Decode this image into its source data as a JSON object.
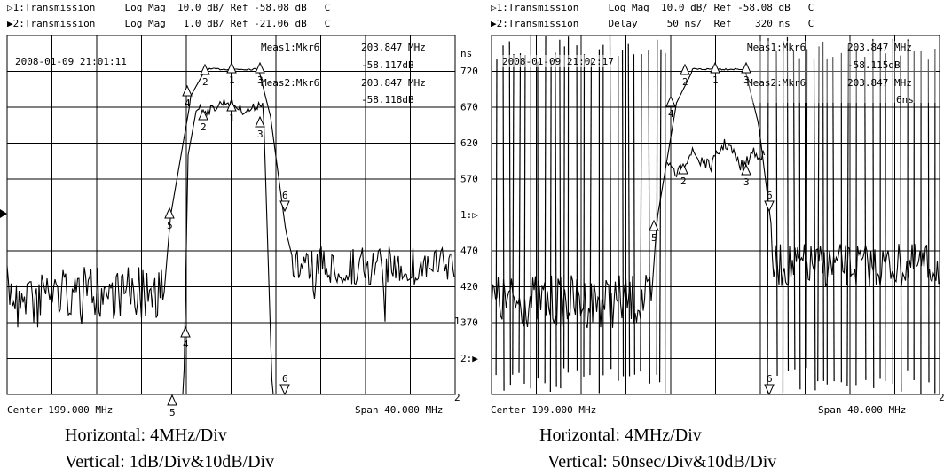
{
  "panels": [
    {
      "header_line1": "▷1:Transmission     Log Mag  10.0 dB/ Ref -58.08 dB   C",
      "header_line2": "▶2:Transmission     Log Mag   1.0 dB/ Ref -21.06 dB   C",
      "timestamp": "2008-01-09 21:01:11",
      "meas1_label": "Meas1:Mkr6",
      "meas1_freq": "203.847 MHz",
      "meas1_val": "-58.117dB",
      "meas2_label": "Meas2:Mkr6",
      "meas2_freq": "203.847 MHz",
      "meas2_val": "-58.118dB",
      "footer_center": "Center 199.000 MHz",
      "footer_span": "Span 40.000 MHz",
      "caption1": "Horizontal: 4MHz/Div",
      "caption2": "Vertical: 1dB/Div&10dB/Div"
    },
    {
      "header_line1": "▷1:Transmission     Log Mag  10.0 dB/ Ref -58.08 dB   C",
      "header_line2": "▶2:Transmission     Delay     50 ns/  Ref    320 ns   C",
      "timestamp": "2008-01-09 21:02:17",
      "meas1_label": "Meas1:Mkr6",
      "meas1_freq": "203.847 MHz",
      "meas1_val": "-58.115dB",
      "meas2_label": "Meas2:Mkr6",
      "meas2_freq": "203.847 MHz",
      "meas2_val": "",
      "meas2_val_partial": "6ns",
      "footer_center": "Center 199.000 MHz",
      "footer_span": "Span 40.000 MHz",
      "caption1": "Horizontal: 4MHz/Div",
      "caption2": "Vertical: 50nsec/Div&10dB/Div",
      "y_unit": "ns",
      "y_ticks": [
        "720",
        "670",
        "620",
        "570",
        "1:▷",
        "470",
        "420",
        "370",
        "2:▶"
      ]
    }
  ],
  "chart_data": [
    {
      "type": "line",
      "x_axis": {
        "center_mhz": 199.0,
        "span_mhz": 40.0,
        "per_div_mhz": 4.0,
        "divisions": 10
      },
      "y_axis": {
        "divisions": 10
      },
      "series": [
        {
          "name": "1:Transmission",
          "format": "Log Mag",
          "scale_per_div": "10.0 dB",
          "ref": "-58.08 dB"
        },
        {
          "name": "2:Transmission",
          "format": "Log Mag",
          "scale_per_div": "1.0 dB",
          "ref": "-21.06 dB"
        }
      ],
      "markers": [
        {
          "trace": 1,
          "labels": [
            "1",
            "2",
            "3",
            "4",
            "5",
            "6"
          ]
        },
        {
          "trace": 2,
          "labels": [
            "1",
            "2",
            "3",
            "4",
            "5",
            "6"
          ]
        }
      ],
      "readouts": [
        {
          "label": "Meas1:Mkr6",
          "freq_mhz": 203.847,
          "value_db": -58.117
        },
        {
          "label": "Meas2:Mkr6",
          "freq_mhz": 203.847,
          "value_db": -58.118
        }
      ],
      "grid": true
    },
    {
      "type": "line",
      "x_axis": {
        "center_mhz": 199.0,
        "span_mhz": 40.0,
        "per_div_mhz": 4.0,
        "divisions": 10
      },
      "y_axis": {
        "divisions": 10,
        "unit": "ns",
        "ticks": [
          720,
          670,
          620,
          570,
          470,
          420,
          370
        ]
      },
      "series": [
        {
          "name": "1:Transmission",
          "format": "Log Mag",
          "scale_per_div": "10.0 dB",
          "ref": "-58.08 dB"
        },
        {
          "name": "2:Transmission",
          "format": "Delay",
          "scale_per_div": "50 ns",
          "ref": "320 ns"
        }
      ],
      "readouts": [
        {
          "label": "Meas1:Mkr6",
          "freq_mhz": 203.847,
          "value_db": -58.115
        }
      ],
      "grid": true
    }
  ]
}
